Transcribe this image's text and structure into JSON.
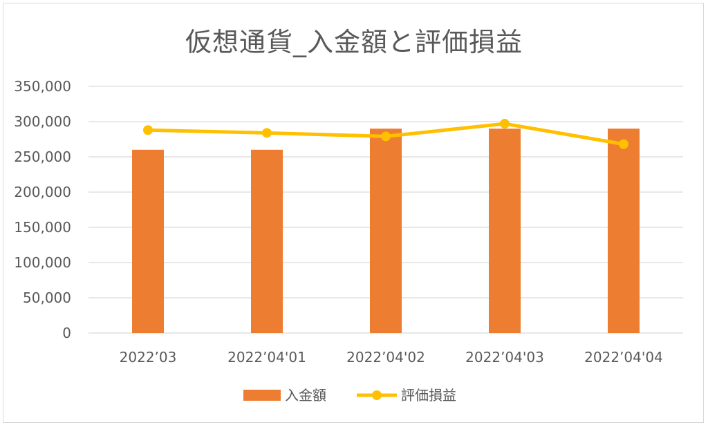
{
  "chart_data": {
    "type": "bar",
    "title": "仮想通貨_入金額と評価損益",
    "categories": [
      "2022’03",
      "2022’04'01",
      "2022’04'02",
      "2022’04'03",
      "2022’04'04"
    ],
    "series": [
      {
        "name": "入金額",
        "type": "bar",
        "color": "#ED7D31",
        "values": [
          260000,
          260000,
          290000,
          290000,
          290000
        ]
      },
      {
        "name": "評価損益",
        "type": "line",
        "color": "#FFC000",
        "values": [
          288000,
          284000,
          279000,
          297000,
          268000
        ]
      }
    ],
    "ylim": [
      0,
      350000
    ],
    "yticks": [
      0,
      50000,
      100000,
      150000,
      200000,
      250000,
      300000,
      350000
    ],
    "ytick_labels": [
      "0",
      "50,000",
      "100,000",
      "150,000",
      "200,000",
      "250,000",
      "300,000",
      "350,000"
    ],
    "grid": true,
    "legend_position": "bottom"
  }
}
